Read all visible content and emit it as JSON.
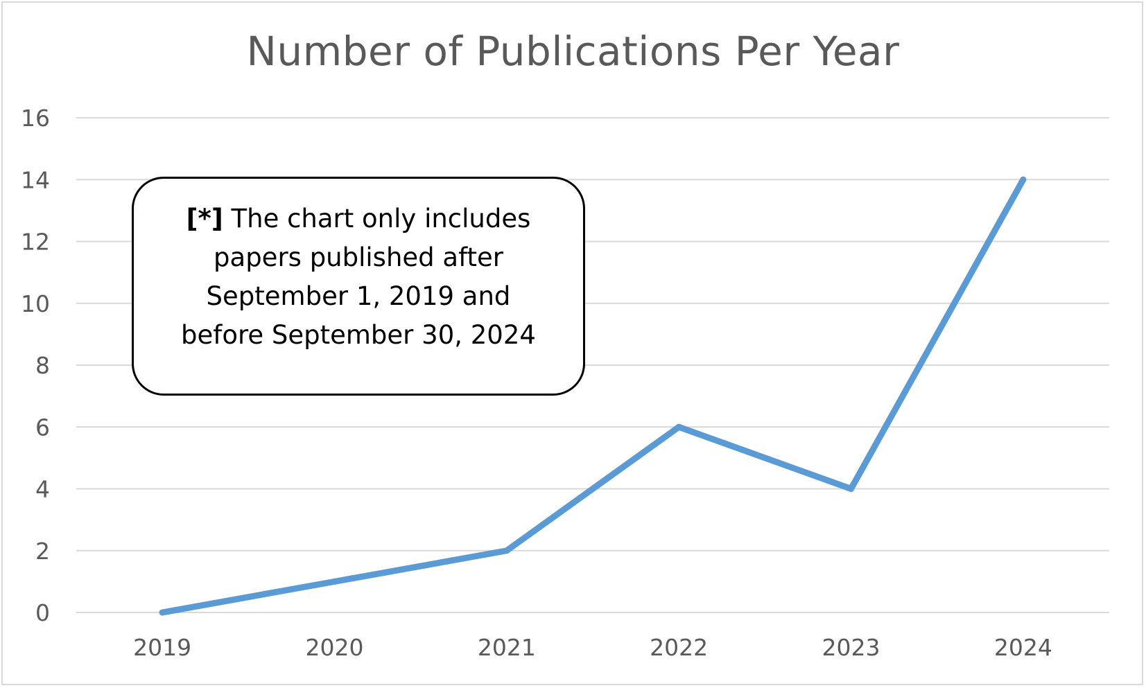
{
  "chart_data": {
    "type": "line",
    "title": "Number of Publications Per Year",
    "xlabel": "",
    "ylabel": "",
    "categories": [
      "2019",
      "2020",
      "2021",
      "2022",
      "2023",
      "2024"
    ],
    "series": [
      {
        "values": [
          0,
          1,
          2,
          6,
          4,
          14
        ],
        "color": "#5b9bd5"
      }
    ],
    "ylim": [
      0,
      16
    ],
    "yticks": [
      0,
      2,
      4,
      6,
      8,
      10,
      12,
      14,
      16
    ],
    "grid": true,
    "legend": "none",
    "annotation": {
      "marker": "[*]",
      "lines": [
        "The chart only includes",
        "papers published after",
        "September 1, 2019 and",
        "before September 30, 2024"
      ]
    }
  },
  "colors": {
    "line": "#5b9bd5",
    "grid": "#d9d9d9",
    "text": "#595959",
    "frame": "#d9d9d9"
  }
}
